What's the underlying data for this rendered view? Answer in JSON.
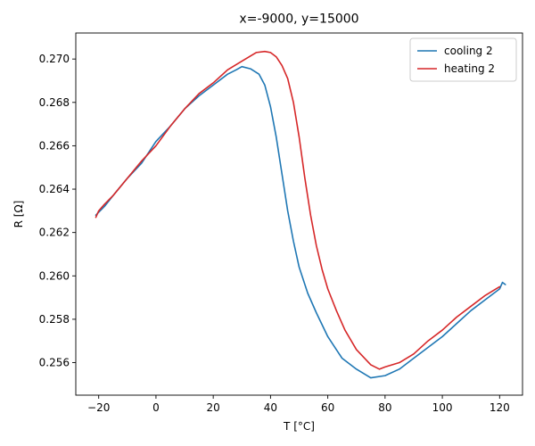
{
  "chart_data": {
    "type": "line",
    "title": "x=-9000, y=15000",
    "xlabel": "T [°C]",
    "ylabel": "R [Ω]",
    "xlim": [
      -28,
      128
    ],
    "ylim": [
      0.2545,
      0.2712
    ],
    "xticks": [
      -20,
      0,
      20,
      40,
      60,
      80,
      100,
      120
    ],
    "yticks": [
      0.256,
      0.258,
      0.26,
      0.262,
      0.264,
      0.266,
      0.268,
      0.27
    ],
    "ytick_labels": [
      "0.256",
      "0.258",
      "0.260",
      "0.262",
      "0.264",
      "0.266",
      "0.268",
      "0.270"
    ],
    "grid": false,
    "legend_position": "top-right",
    "series": [
      {
        "name": "cooling 2",
        "color": "#1f77b4",
        "points": [
          [
            -21,
            0.2628
          ],
          [
            -18,
            0.2632
          ],
          [
            -15,
            0.2637
          ],
          [
            -10,
            0.2645
          ],
          [
            -5,
            0.2652
          ],
          [
            0,
            0.2662
          ],
          [
            5,
            0.2669
          ],
          [
            10,
            0.2677
          ],
          [
            15,
            0.2683
          ],
          [
            20,
            0.2688
          ],
          [
            25,
            0.2693
          ],
          [
            28,
            0.2695
          ],
          [
            30,
            0.26965
          ],
          [
            33,
            0.26955
          ],
          [
            36,
            0.2693
          ],
          [
            38,
            0.2688
          ],
          [
            40,
            0.2678
          ],
          [
            42,
            0.2664
          ],
          [
            44,
            0.2647
          ],
          [
            46,
            0.263
          ],
          [
            48,
            0.2616
          ],
          [
            50,
            0.2604
          ],
          [
            53,
            0.2592
          ],
          [
            56,
            0.2583
          ],
          [
            60,
            0.2572
          ],
          [
            65,
            0.2562
          ],
          [
            70,
            0.2557
          ],
          [
            75,
            0.2553
          ],
          [
            80,
            0.2554
          ],
          [
            85,
            0.2557
          ],
          [
            90,
            0.2562
          ],
          [
            95,
            0.2567
          ],
          [
            100,
            0.2572
          ],
          [
            105,
            0.2578
          ],
          [
            110,
            0.2584
          ],
          [
            115,
            0.2589
          ],
          [
            120,
            0.2594
          ],
          [
            121,
            0.2597
          ],
          [
            122,
            0.2596
          ]
        ]
      },
      {
        "name": "heating 2",
        "color": "#d62728",
        "points": [
          [
            -21,
            0.2627
          ],
          [
            -20,
            0.263
          ],
          [
            -18,
            0.2633
          ],
          [
            -15,
            0.2637
          ],
          [
            -10,
            0.2645
          ],
          [
            -5,
            0.2653
          ],
          [
            0,
            0.266
          ],
          [
            5,
            0.2669
          ],
          [
            10,
            0.2677
          ],
          [
            15,
            0.2684
          ],
          [
            20,
            0.2689
          ],
          [
            25,
            0.2695
          ],
          [
            30,
            0.2699
          ],
          [
            35,
            0.2703
          ],
          [
            38,
            0.27035
          ],
          [
            40,
            0.2703
          ],
          [
            42,
            0.2701
          ],
          [
            44,
            0.2697
          ],
          [
            46,
            0.2691
          ],
          [
            48,
            0.268
          ],
          [
            50,
            0.2664
          ],
          [
            52,
            0.2645
          ],
          [
            54,
            0.2628
          ],
          [
            56,
            0.2614
          ],
          [
            58,
            0.2603
          ],
          [
            60,
            0.2594
          ],
          [
            63,
            0.2584
          ],
          [
            66,
            0.2575
          ],
          [
            70,
            0.2566
          ],
          [
            75,
            0.2559
          ],
          [
            78,
            0.2557
          ],
          [
            80,
            0.2558
          ],
          [
            85,
            0.256
          ],
          [
            90,
            0.2564
          ],
          [
            95,
            0.257
          ],
          [
            100,
            0.2575
          ],
          [
            105,
            0.2581
          ],
          [
            110,
            0.2586
          ],
          [
            115,
            0.2591
          ],
          [
            120,
            0.2595
          ]
        ]
      }
    ]
  }
}
